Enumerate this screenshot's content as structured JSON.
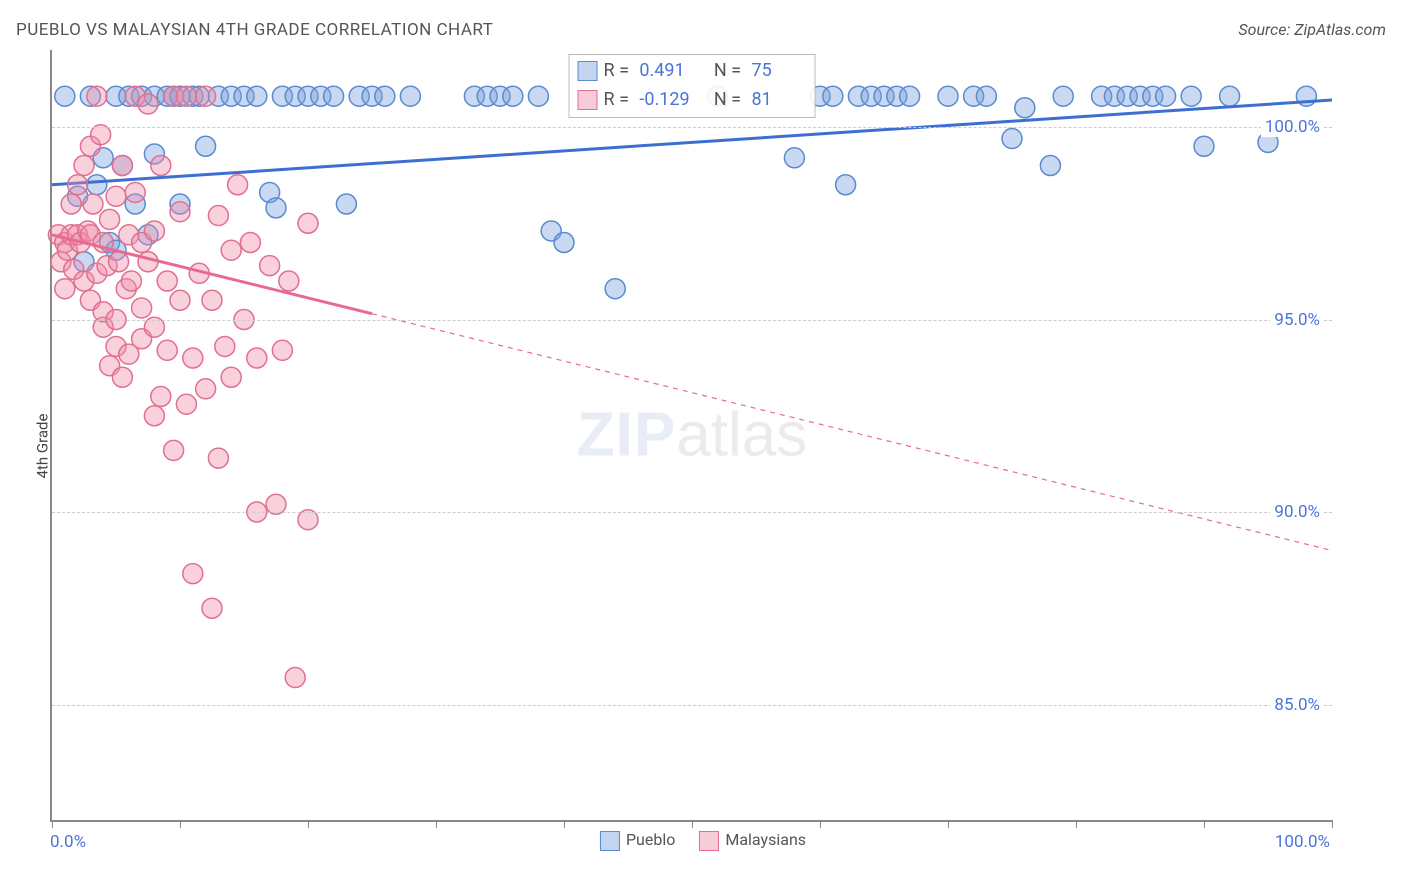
{
  "title": "PUEBLO VS MALAYSIAN 4TH GRADE CORRELATION CHART",
  "source": "Source: ZipAtlas.com",
  "ylabel": "4th Grade",
  "watermark_zip": "ZIP",
  "watermark_atlas": "atlas",
  "chart": {
    "type": "scatter",
    "xlim": [
      0,
      100
    ],
    "ylim": [
      82,
      102
    ],
    "yticks": [
      85,
      90,
      95,
      100
    ],
    "ytick_labels": [
      "85.0%",
      "90.0%",
      "95.0%",
      "100.0%"
    ],
    "xtick_positions": [
      0,
      10,
      20,
      30,
      40,
      50,
      60,
      70,
      80,
      90,
      100
    ],
    "xlabel_min": "0.0%",
    "xlabel_max": "100.0%",
    "background_color": "#ffffff",
    "grid_color": "#cccccc",
    "marker_radius": 10,
    "marker_stroke_width": 1.5,
    "trend_line_width": 3,
    "trend_dash": "5,5",
    "series": [
      {
        "name": "Pueblo",
        "color_fill": "rgba(120,160,220,0.40)",
        "color_stroke": "#5a8ad0",
        "trend_color": "#3d6fd1",
        "R_label": "R =",
        "R_value": "0.491",
        "N_label": "N =",
        "N_value": "75",
        "trend": {
          "x1": 0,
          "y1": 98.5,
          "x2": 100,
          "y2": 100.7,
          "solid_until_x": 100
        },
        "points": [
          [
            1,
            100.8
          ],
          [
            2,
            98.2
          ],
          [
            2.5,
            96.5
          ],
          [
            3,
            100.8
          ],
          [
            3.5,
            98.5
          ],
          [
            4,
            99.2
          ],
          [
            4.5,
            97.0
          ],
          [
            5,
            100.8
          ],
          [
            5,
            96.8
          ],
          [
            5.5,
            99.0
          ],
          [
            6,
            100.8
          ],
          [
            6.5,
            98.0
          ],
          [
            7,
            100.8
          ],
          [
            7.5,
            97.2
          ],
          [
            8,
            100.8
          ],
          [
            8,
            99.3
          ],
          [
            9,
            100.8
          ],
          [
            9.5,
            100.8
          ],
          [
            10,
            98.0
          ],
          [
            10,
            100.8
          ],
          [
            11,
            100.8
          ],
          [
            11.5,
            100.8
          ],
          [
            12,
            99.5
          ],
          [
            13,
            100.8
          ],
          [
            14,
            100.8
          ],
          [
            15,
            100.8
          ],
          [
            16,
            100.8
          ],
          [
            17,
            98.3
          ],
          [
            17.5,
            97.9
          ],
          [
            18,
            100.8
          ],
          [
            19,
            100.8
          ],
          [
            20,
            100.8
          ],
          [
            21,
            100.8
          ],
          [
            22,
            100.8
          ],
          [
            23,
            98.0
          ],
          [
            24,
            100.8
          ],
          [
            25,
            100.8
          ],
          [
            26,
            100.8
          ],
          [
            28,
            100.8
          ],
          [
            33,
            100.8
          ],
          [
            34,
            100.8
          ],
          [
            35,
            100.8
          ],
          [
            36,
            100.8
          ],
          [
            38,
            100.8
          ],
          [
            39,
            97.3
          ],
          [
            40,
            97.0
          ],
          [
            44,
            95.8
          ],
          [
            52,
            100.8
          ],
          [
            58,
            99.2
          ],
          [
            60,
            100.8
          ],
          [
            61,
            100.8
          ],
          [
            62,
            98.5
          ],
          [
            63,
            100.8
          ],
          [
            64,
            100.8
          ],
          [
            65,
            100.8
          ],
          [
            66,
            100.8
          ],
          [
            67,
            100.8
          ],
          [
            70,
            100.8
          ],
          [
            72,
            100.8
          ],
          [
            73,
            100.8
          ],
          [
            75,
            99.7
          ],
          [
            76,
            100.5
          ],
          [
            78,
            99.0
          ],
          [
            79,
            100.8
          ],
          [
            82,
            100.8
          ],
          [
            83,
            100.8
          ],
          [
            84,
            100.8
          ],
          [
            85,
            100.8
          ],
          [
            86,
            100.8
          ],
          [
            87,
            100.8
          ],
          [
            89,
            100.8
          ],
          [
            90,
            99.5
          ],
          [
            92,
            100.8
          ],
          [
            95,
            99.6
          ],
          [
            98,
            100.8
          ]
        ]
      },
      {
        "name": "Malaysians",
        "color_fill": "rgba(240,140,170,0.40)",
        "color_stroke": "#e07090",
        "trend_color": "#e86a92",
        "R_label": "R =",
        "R_value": "-0.129",
        "N_label": "N =",
        "N_value": "81",
        "trend": {
          "x1": 0,
          "y1": 97.2,
          "x2": 100,
          "y2": 89.0,
          "solid_until_x": 25
        },
        "points": [
          [
            0.5,
            97.2
          ],
          [
            0.7,
            96.5
          ],
          [
            1,
            97.0
          ],
          [
            1,
            95.8
          ],
          [
            1.2,
            96.8
          ],
          [
            1.5,
            97.2
          ],
          [
            1.5,
            98.0
          ],
          [
            1.7,
            96.3
          ],
          [
            2,
            97.2
          ],
          [
            2,
            98.5
          ],
          [
            2.2,
            97.0
          ],
          [
            2.5,
            96.0
          ],
          [
            2.5,
            99.0
          ],
          [
            2.8,
            97.3
          ],
          [
            3,
            97.2
          ],
          [
            3,
            99.5
          ],
          [
            3,
            95.5
          ],
          [
            3.2,
            98.0
          ],
          [
            3.5,
            96.2
          ],
          [
            3.5,
            100.8
          ],
          [
            3.8,
            99.8
          ],
          [
            4,
            97.0
          ],
          [
            4,
            94.8
          ],
          [
            4,
            95.2
          ],
          [
            4.3,
            96.4
          ],
          [
            4.5,
            97.6
          ],
          [
            4.5,
            93.8
          ],
          [
            5,
            98.2
          ],
          [
            5,
            95.0
          ],
          [
            5,
            94.3
          ],
          [
            5.2,
            96.5
          ],
          [
            5.5,
            99.0
          ],
          [
            5.5,
            93.5
          ],
          [
            5.8,
            95.8
          ],
          [
            6,
            97.2
          ],
          [
            6,
            94.1
          ],
          [
            6.2,
            96.0
          ],
          [
            6.5,
            98.3
          ],
          [
            6.5,
            100.8
          ],
          [
            7,
            97.0
          ],
          [
            7,
            94.5
          ],
          [
            7,
            95.3
          ],
          [
            7.5,
            96.5
          ],
          [
            7.5,
            100.6
          ],
          [
            8,
            92.5
          ],
          [
            8,
            94.8
          ],
          [
            8,
            97.3
          ],
          [
            8.5,
            99.0
          ],
          [
            8.5,
            93.0
          ],
          [
            9,
            96.0
          ],
          [
            9,
            94.2
          ],
          [
            9.5,
            100.8
          ],
          [
            9.5,
            91.6
          ],
          [
            10,
            95.5
          ],
          [
            10,
            97.8
          ],
          [
            10.5,
            92.8
          ],
          [
            10.5,
            100.8
          ],
          [
            11,
            94.0
          ],
          [
            11,
            88.4
          ],
          [
            11.5,
            96.2
          ],
          [
            12,
            93.2
          ],
          [
            12,
            100.8
          ],
          [
            12.5,
            95.5
          ],
          [
            12.5,
            87.5
          ],
          [
            13,
            97.7
          ],
          [
            13,
            91.4
          ],
          [
            13.5,
            94.3
          ],
          [
            14,
            96.8
          ],
          [
            14,
            93.5
          ],
          [
            14.5,
            98.5
          ],
          [
            15,
            95.0
          ],
          [
            15.5,
            97.0
          ],
          [
            16,
            94.0
          ],
          [
            16,
            90.0
          ],
          [
            17,
            96.4
          ],
          [
            17.5,
            90.2
          ],
          [
            18,
            94.2
          ],
          [
            18.5,
            96.0
          ],
          [
            19,
            85.7
          ],
          [
            20,
            89.8
          ],
          [
            20,
            97.5
          ]
        ]
      }
    ],
    "legend_bottom": [
      "Pueblo",
      "Malaysians"
    ]
  }
}
